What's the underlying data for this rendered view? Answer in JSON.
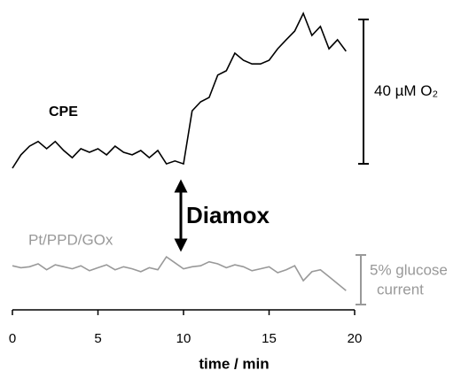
{
  "chart_data": {
    "type": "line",
    "x_label": "time / min",
    "xlim": [
      0,
      20
    ],
    "xticks": [
      0,
      5,
      10,
      15,
      20
    ],
    "ylim": [
      0,
      45
    ],
    "y2lim": [
      0,
      7
    ],
    "x": [
      0,
      0.5,
      1,
      1.5,
      2,
      2.5,
      3,
      3.5,
      4,
      4.5,
      5,
      5.5,
      6,
      6.5,
      7,
      7.5,
      8,
      8.5,
      9,
      9.5,
      10,
      10.5,
      11,
      11.5,
      12,
      12.5,
      13,
      13.5,
      14,
      14.5,
      15,
      15.5,
      16,
      16.5,
      17,
      17.5,
      18,
      18.5,
      19,
      19.5
    ],
    "series": [
      {
        "name": "CPE",
        "color": "#000000",
        "values": [
          0.5,
          4.2,
          6.6,
          7.9,
          5.9,
          7.9,
          5.4,
          3.4,
          5.9,
          4.9,
          5.9,
          4.2,
          6.6,
          4.9,
          4.2,
          5.4,
          3.4,
          5.4,
          1.7,
          2.5,
          1.7,
          16.4,
          18.9,
          20.1,
          26.3,
          27.5,
          32.4,
          30.4,
          29.4,
          29.4,
          30.4,
          33.6,
          36.1,
          38.5,
          43.4,
          37.3,
          39.8,
          33.6,
          36.1,
          32.9
        ],
        "scale_bar": {
          "value": 40,
          "label": "40 µM O₂"
        }
      },
      {
        "name": "Pt/PPD/GOx",
        "color": "#999999",
        "axis": "y2",
        "values": [
          4.0,
          3.8,
          3.9,
          4.2,
          3.6,
          4.1,
          3.9,
          3.7,
          4.0,
          3.5,
          3.8,
          4.1,
          3.6,
          3.9,
          3.7,
          3.4,
          3.8,
          3.6,
          4.9,
          4.3,
          3.7,
          3.9,
          4.0,
          4.4,
          4.2,
          3.8,
          4.1,
          3.9,
          3.5,
          3.7,
          3.9,
          3.3,
          3.6,
          4.0,
          2.5,
          3.4,
          3.6,
          2.9,
          2.2,
          1.5
        ],
        "scale_bar": {
          "value": 5,
          "label_lines": [
            "5% glucose",
            "current"
          ]
        }
      }
    ],
    "annotation": "Diamox"
  }
}
